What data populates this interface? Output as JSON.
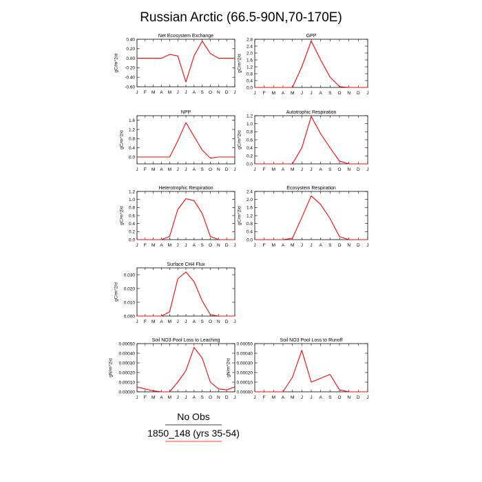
{
  "title": "Russian Arctic (66.5-90N,70-170E)",
  "legend": [
    {
      "label": "No Obs",
      "color": "#000000"
    },
    {
      "label": "1850_148 (yrs 35-54)",
      "color": "#ff0000"
    }
  ],
  "chart_data": [
    {
      "type": "line",
      "title": "Net Ecosystem Exchange",
      "ylabel": "gC/m^2/d",
      "x": [
        "J",
        "F",
        "M",
        "A",
        "M",
        "J",
        "J",
        "A",
        "S",
        "O",
        "N",
        "D",
        "J"
      ],
      "ylim": [
        -0.6,
        0.4
      ],
      "yticks": [
        "0.40",
        "0.20",
        "0.00",
        "-0.20",
        "-0.40",
        "-0.60"
      ],
      "series": [
        {
          "values": [
            0,
            0,
            0,
            0,
            0.08,
            0.05,
            -0.5,
            0.05,
            0.36,
            0.1,
            0,
            0,
            0
          ],
          "color": "#ff0000"
        }
      ]
    },
    {
      "type": "line",
      "title": "GPP",
      "ylabel": "gC/m^2/d",
      "x": [
        "J",
        "F",
        "M",
        "A",
        "M",
        "J",
        "J",
        "A",
        "S",
        "O",
        "N",
        "D",
        "J"
      ],
      "ylim": [
        0,
        2.8
      ],
      "yticks": [
        "2.8",
        "2.4",
        "2.0",
        "1.6",
        "1.2",
        "0.8",
        "0.4",
        "0.0"
      ],
      "series": [
        {
          "values": [
            0,
            0,
            0,
            0,
            0,
            1.2,
            2.7,
            1.6,
            0.6,
            0.05,
            0,
            0,
            0
          ],
          "color": "#ff0000"
        }
      ]
    },
    {
      "type": "line",
      "title": "NPP",
      "ylabel": "gC/m^2/d",
      "x": [
        "J",
        "F",
        "M",
        "A",
        "M",
        "J",
        "J",
        "A",
        "S",
        "O",
        "N",
        "D",
        "J"
      ],
      "ylim": [
        -0.3,
        1.8
      ],
      "yticks": [
        "1.6",
        "1.2",
        "0.8",
        "0.4",
        "0.0"
      ],
      "series": [
        {
          "values": [
            0,
            0,
            0,
            0,
            0,
            0.7,
            1.5,
            0.9,
            0.3,
            -0.05,
            0,
            0,
            0
          ],
          "color": "#ff0000"
        }
      ]
    },
    {
      "type": "line",
      "title": "Autotrophic Respiration",
      "ylabel": "gC/m^2/d",
      "x": [
        "J",
        "F",
        "M",
        "A",
        "M",
        "J",
        "J",
        "A",
        "S",
        "O",
        "N",
        "D",
        "J"
      ],
      "ylim": [
        0,
        1.2
      ],
      "yticks": [
        "1.2",
        "1.0",
        "0.8",
        "0.6",
        "0.4",
        "0.2",
        "0.0"
      ],
      "series": [
        {
          "values": [
            0,
            0,
            0,
            0,
            0,
            0.4,
            1.18,
            0.75,
            0.4,
            0.07,
            0,
            0,
            0
          ],
          "color": "#ff0000"
        }
      ]
    },
    {
      "type": "line",
      "title": "Heterotrophic Respiration",
      "ylabel": "gC/m^2/d",
      "x": [
        "J",
        "F",
        "M",
        "A",
        "M",
        "J",
        "J",
        "A",
        "S",
        "O",
        "N",
        "D",
        "J"
      ],
      "ylim": [
        0,
        1.2
      ],
      "yticks": [
        "1.2",
        "1.0",
        "0.8",
        "0.6",
        "0.4",
        "0.2",
        "0.0"
      ],
      "series": [
        {
          "values": [
            0,
            0,
            0,
            0,
            0.08,
            0.75,
            1.02,
            0.97,
            0.65,
            0.08,
            0,
            0,
            0
          ],
          "color": "#ff0000"
        }
      ]
    },
    {
      "type": "line",
      "title": "Ecosystem Respiration",
      "ylabel": "gC/m^2/d",
      "x": [
        "J",
        "F",
        "M",
        "A",
        "M",
        "J",
        "J",
        "A",
        "S",
        "O",
        "N",
        "D",
        "J"
      ],
      "ylim": [
        0,
        2.4
      ],
      "yticks": [
        "2.4",
        "2.0",
        "1.6",
        "1.2",
        "0.8",
        "0.4",
        "0.0"
      ],
      "series": [
        {
          "values": [
            0,
            0,
            0,
            0,
            0.07,
            1.1,
            2.18,
            1.75,
            1.05,
            0.15,
            0,
            0,
            0
          ],
          "color": "#ff0000"
        }
      ]
    },
    {
      "type": "line",
      "title": "Surface CH4 Flux",
      "ylabel": "gC/m^2/d",
      "x": [
        "J",
        "F",
        "M",
        "A",
        "M",
        "J",
        "J",
        "A",
        "S",
        "O",
        "N",
        "D",
        "J"
      ],
      "ylim": [
        0,
        0.035
      ],
      "yticks": [
        "0.030",
        "0.020",
        "0.010",
        "0.000"
      ],
      "series": [
        {
          "values": [
            0,
            0,
            0,
            0,
            0.003,
            0.027,
            0.032,
            0.025,
            0.011,
            0.001,
            0,
            0,
            0
          ],
          "color": "#ff0000"
        }
      ]
    },
    {
      "type": "line",
      "title": "Soil NO3 Pool Loss to Leaching",
      "ylabel": "gN/m^2/d",
      "x": [
        "J",
        "F",
        "M",
        "A",
        "M",
        "J",
        "J",
        "A",
        "S",
        "O",
        "N",
        "D",
        "J"
      ],
      "ylim": [
        0,
        0.0005
      ],
      "yticks": [
        "0.00050",
        "0.00040",
        "0.00030",
        "0.00020",
        "0.00010",
        "0.00000"
      ],
      "series": [
        {
          "values": [
            5e-05,
            3e-05,
            1e-05,
            0,
            0,
            0.0001,
            0.00022,
            0.00046,
            0.00035,
            0.0001,
            3e-05,
            2e-05,
            5e-05
          ],
          "color": "#ff0000"
        }
      ]
    },
    {
      "type": "line",
      "title": "Soil NO3 Pool Loss to Runoff",
      "ylabel": "gN/m^2/d",
      "x": [
        "J",
        "F",
        "M",
        "A",
        "M",
        "J",
        "J",
        "A",
        "S",
        "O",
        "N",
        "D",
        "J"
      ],
      "ylim": [
        0,
        0.0005
      ],
      "yticks": [
        "0.00050",
        "0.00040",
        "0.00030",
        "0.00020",
        "0.00010",
        "0.00000"
      ],
      "series": [
        {
          "values": [
            0,
            0,
            0,
            0,
            0.00015,
            0.00043,
            0.0001,
            0.00014,
            0.00018,
            2e-05,
            0,
            0,
            0
          ],
          "color": "#ff0000"
        }
      ]
    }
  ]
}
